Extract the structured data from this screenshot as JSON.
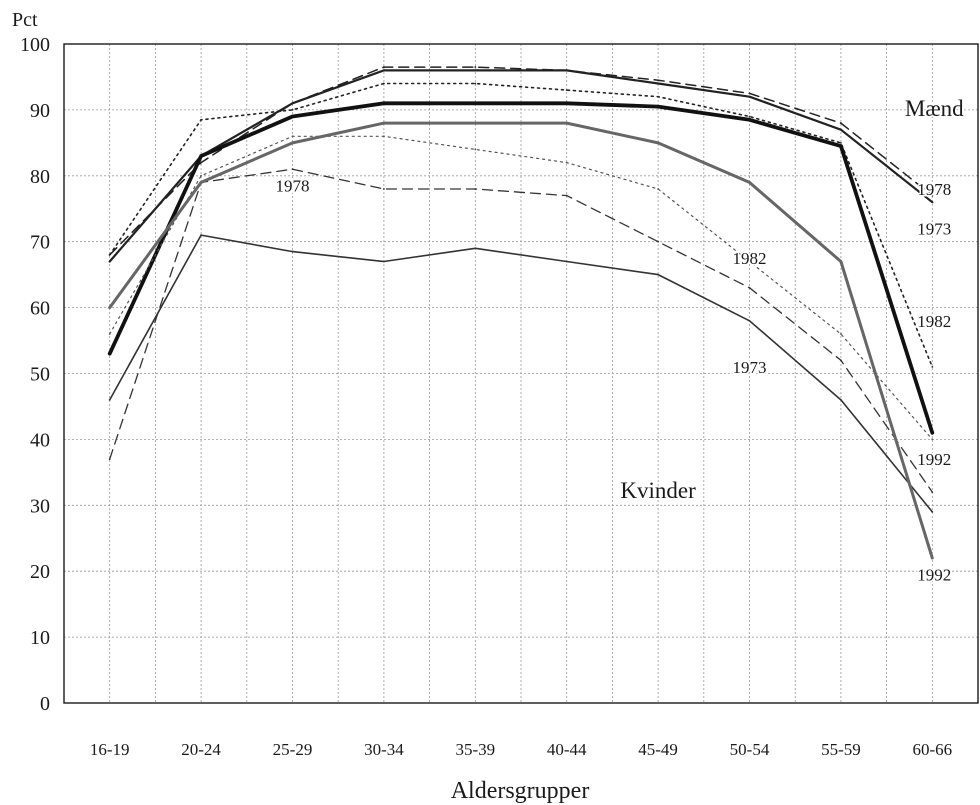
{
  "chart_data": {
    "type": "line",
    "ylabel": "Pct",
    "xlabel": "Aldersgrupper",
    "categories": [
      "16-19",
      "20-24",
      "25-29",
      "30-34",
      "35-39",
      "40-44",
      "45-49",
      "50-54",
      "55-59",
      "60-66"
    ],
    "ylim": [
      0,
      100
    ],
    "yticks": [
      "0",
      "10",
      "20",
      "30",
      "40",
      "50",
      "60",
      "70",
      "80",
      "90",
      "100"
    ],
    "grid": true,
    "group_labels": {
      "men": "Mænd",
      "women": "Kvinder"
    },
    "series": [
      {
        "name": "1973",
        "group": "men",
        "values": [
          67,
          83,
          91,
          96,
          96,
          96,
          94,
          92,
          87,
          76
        ]
      },
      {
        "name": "1978",
        "group": "men",
        "values": [
          68,
          82,
          91,
          96.5,
          96.5,
          96,
          94.5,
          92.5,
          88,
          77
        ]
      },
      {
        "name": "1982",
        "group": "men",
        "values": [
          68,
          88.5,
          90,
          94,
          94,
          93,
          92,
          89,
          85,
          51
        ]
      },
      {
        "name": "1992",
        "group": "men",
        "values": [
          53,
          83,
          89,
          91,
          91,
          91,
          90.5,
          88.5,
          84.5,
          41
        ]
      },
      {
        "name": "1973",
        "group": "women",
        "values": [
          46,
          71,
          68.5,
          67,
          69,
          67,
          65,
          58,
          46,
          29
        ]
      },
      {
        "name": "1978",
        "group": "women",
        "values": [
          37,
          79,
          81,
          78,
          78,
          77,
          70,
          63,
          52,
          32
        ]
      },
      {
        "name": "1982",
        "group": "women",
        "values": [
          56,
          80,
          86,
          86,
          84,
          82,
          78,
          67,
          56,
          40
        ]
      },
      {
        "name": "1992",
        "group": "women",
        "values": [
          60,
          79,
          85,
          88,
          88,
          88,
          85,
          79,
          67,
          22
        ]
      }
    ],
    "annotations": [
      {
        "text": "Mænd",
        "at": [
          "60-66",
          90
        ]
      },
      {
        "text": "1978",
        "at": [
          "60-66",
          78
        ]
      },
      {
        "text": "1973",
        "at": [
          "60-66",
          72
        ]
      },
      {
        "text": "1982",
        "at": [
          "60-66",
          58
        ]
      },
      {
        "text": "1992",
        "at": [
          "60-66",
          37
        ]
      },
      {
        "text": "1992",
        "at": [
          "60-66",
          19.5
        ]
      },
      {
        "text": "Kvinder",
        "at": [
          "45-49",
          32
        ]
      },
      {
        "text": "1973",
        "at": [
          "50-54",
          51
        ]
      },
      {
        "text": "1982",
        "at": [
          "50-54",
          67.5
        ]
      },
      {
        "text": "1978",
        "at": [
          "25-29",
          78.5
        ]
      }
    ]
  }
}
